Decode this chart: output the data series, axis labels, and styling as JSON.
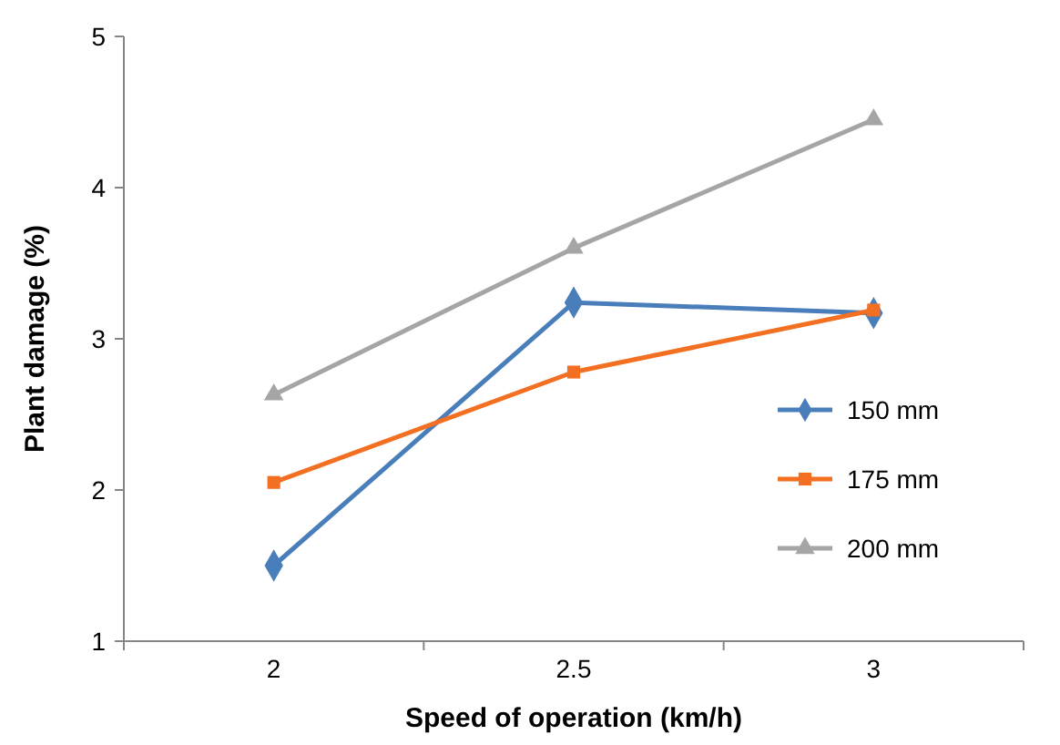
{
  "chart_data": {
    "type": "line",
    "xlabel": "Speed of operation (km/h)",
    "ylabel": "Plant damage (%)",
    "categories": [
      "2",
      "2.5",
      "3"
    ],
    "ylim": [
      1,
      5
    ],
    "yticks": [
      1,
      2,
      3,
      4,
      5
    ],
    "grid": false,
    "legend": "right",
    "series": [
      {
        "name": "150 mm",
        "color": "#4a7ebb",
        "marker": "diamond",
        "values": [
          1.5,
          3.24,
          3.17
        ]
      },
      {
        "name": "175 mm",
        "color": "#f36f21",
        "marker": "square",
        "values": [
          2.05,
          2.78,
          3.19
        ]
      },
      {
        "name": "200 mm",
        "color": "#a5a5a5",
        "marker": "triangle",
        "values": [
          2.63,
          3.6,
          4.45
        ]
      }
    ]
  }
}
